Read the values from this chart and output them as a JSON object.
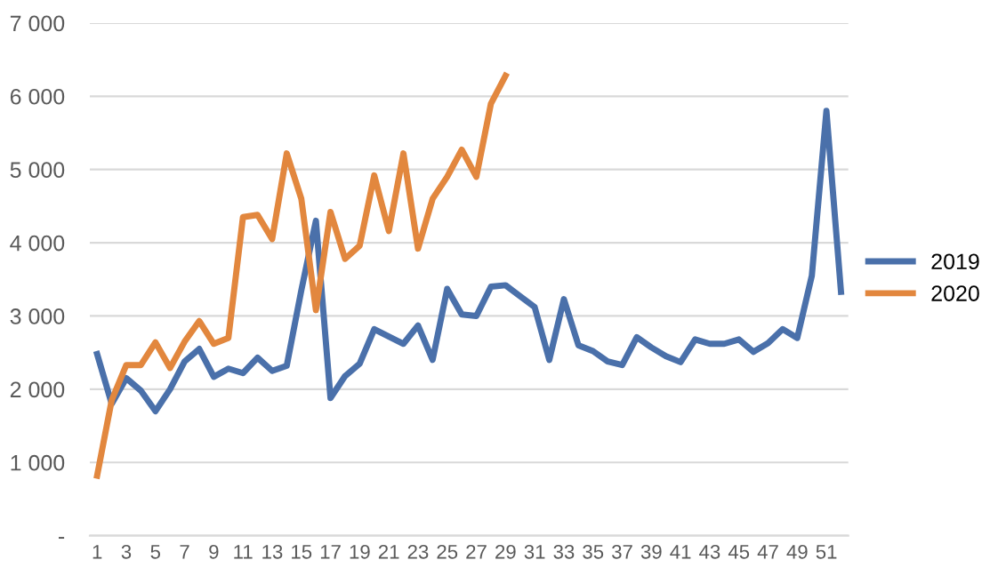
{
  "chart_data": {
    "type": "line",
    "categories": [
      "1",
      null,
      "3",
      null,
      "5",
      null,
      "7",
      null,
      "9",
      null,
      "11",
      null,
      "13",
      null,
      "15",
      null,
      "17",
      null,
      "19",
      null,
      "21",
      null,
      "23",
      null,
      "25",
      null,
      "27",
      null,
      "29",
      null,
      "31",
      null,
      "33",
      null,
      "35",
      null,
      "37",
      null,
      "39",
      null,
      "41",
      null,
      "43",
      null,
      "45",
      null,
      "47",
      null,
      "49",
      null,
      "51",
      null
    ],
    "series": [
      {
        "name": "2019",
        "color": "#4a70aa",
        "values": [
          2480,
          1800,
          2150,
          1980,
          1700,
          2000,
          2380,
          2550,
          2170,
          2280,
          2220,
          2430,
          2250,
          2320,
          3350,
          4300,
          1880,
          2180,
          2350,
          2820,
          2720,
          2620,
          2870,
          2400,
          3370,
          3020,
          3000,
          3400,
          3420,
          3270,
          3120,
          2400,
          3230,
          2600,
          2520,
          2380,
          2330,
          2710,
          2570,
          2450,
          2370,
          2680,
          2620,
          2620,
          2680,
          2510,
          2630,
          2820,
          2700,
          3550,
          5800,
          3330
        ]
      },
      {
        "name": "2020",
        "color": "#e2873e",
        "values": [
          820,
          1850,
          2330,
          2330,
          2640,
          2290,
          2650,
          2930,
          2620,
          2700,
          4350,
          4380,
          4050,
          5220,
          4600,
          3080,
          4420,
          3780,
          3960,
          4920,
          4160,
          5220,
          3920,
          4600,
          4900,
          5270,
          4900,
          5900,
          6280,
          null,
          null,
          null,
          null,
          null,
          null,
          null,
          null,
          null,
          null,
          null,
          null,
          null,
          null,
          null,
          null,
          null,
          null,
          null,
          null,
          null,
          null,
          null
        ]
      }
    ],
    "ylim": [
      0,
      7000
    ],
    "yticks": [
      {
        "value": 0,
        "label": "-"
      },
      {
        "value": 1000,
        "label": "1 000"
      },
      {
        "value": 2000,
        "label": "2 000"
      },
      {
        "value": 3000,
        "label": "3 000"
      },
      {
        "value": 4000,
        "label": "4 000"
      },
      {
        "value": 5000,
        "label": "5 000"
      },
      {
        "value": 6000,
        "label": "6 000"
      },
      {
        "value": 7000,
        "label": "7 000"
      }
    ],
    "grid": "y",
    "legend": "right",
    "marker": "none",
    "line_style": "solid"
  }
}
